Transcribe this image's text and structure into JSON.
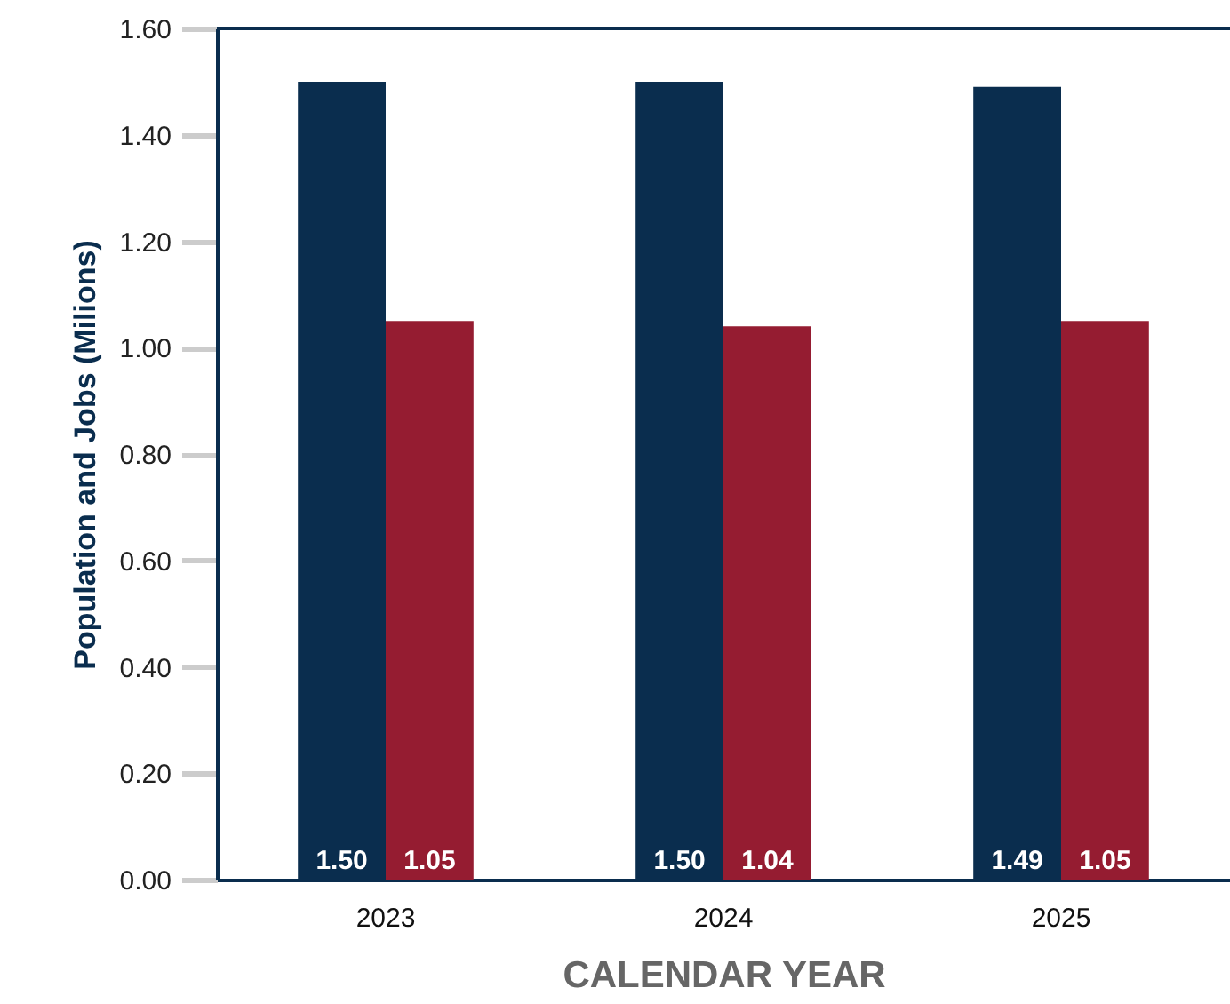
{
  "chart_data": {
    "type": "bar",
    "xlabel": "CALENDAR YEAR",
    "ylabel": "Population and Jobs (Milions)",
    "categories": [
      "2023",
      "2024",
      "2025"
    ],
    "series": [
      {
        "color": "#0a2d4e",
        "values": [
          1.5,
          1.5,
          1.49
        ],
        "value_labels": [
          "1.50",
          "1.50",
          "1.49"
        ]
      },
      {
        "color": "#951c31",
        "values": [
          1.05,
          1.04,
          1.05
        ],
        "value_labels": [
          "1.05",
          "1.04",
          "1.05"
        ]
      }
    ],
    "ylim": [
      0,
      1.6
    ],
    "yticks": [
      {
        "value": 0,
        "label": "0.00"
      },
      {
        "value": 0.2,
        "label": "0.20"
      },
      {
        "value": 0.4,
        "label": "0.40"
      },
      {
        "value": 0.6,
        "label": "0.60"
      },
      {
        "value": 0.8,
        "label": "0.80"
      },
      {
        "value": 1.0,
        "label": "1.00"
      },
      {
        "value": 1.2,
        "label": "1.20"
      },
      {
        "value": 1.4,
        "label": "1.40"
      },
      {
        "value": 1.6,
        "label": "1.60"
      }
    ],
    "grid": false
  }
}
